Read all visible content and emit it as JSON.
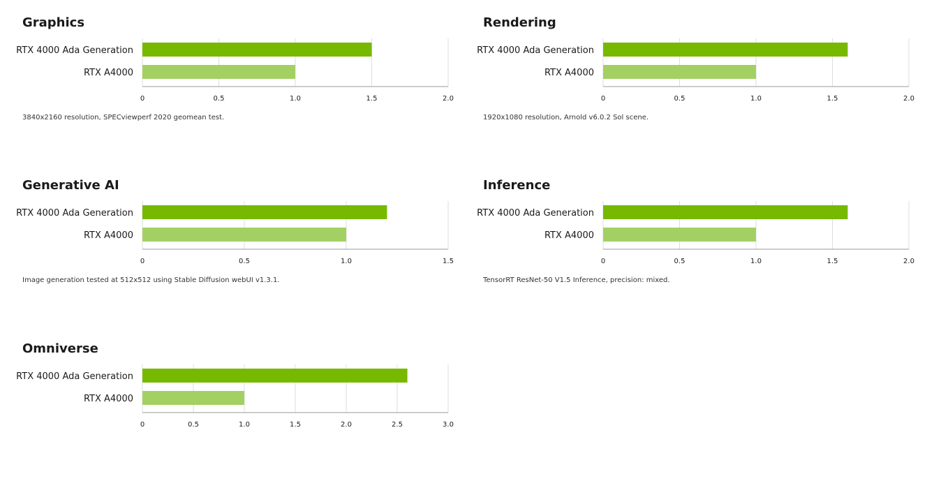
{
  "chart_data": [
    {
      "type": "bar",
      "orientation": "horizontal",
      "title": "Graphics",
      "categories": [
        "RTX 4000 Ada Generation",
        "RTX A4000"
      ],
      "values": [
        1.5,
        1.0
      ],
      "xlim": [
        0,
        2.0
      ],
      "ticks": [
        "0",
        "0.5",
        "1.0",
        "1.5",
        "2.0"
      ],
      "grid": true,
      "footnote": "3840x2160 resolution, SPECviewperf 2020 geomean test."
    },
    {
      "type": "bar",
      "orientation": "horizontal",
      "title": "Rendering",
      "categories": [
        "RTX 4000 Ada Generation",
        "RTX A4000"
      ],
      "values": [
        1.6,
        1.0
      ],
      "xlim": [
        0,
        2.0
      ],
      "ticks": [
        "0",
        "0.5",
        "1.0",
        "1.5",
        "2.0"
      ],
      "grid": true,
      "footnote": "1920x1080 resolution, Arnold v6.0.2 Sol scene."
    },
    {
      "type": "bar",
      "orientation": "horizontal",
      "title": "Generative AI",
      "categories": [
        "RTX 4000 Ada Generation",
        "RTX A4000"
      ],
      "values": [
        1.2,
        1.0
      ],
      "xlim": [
        0,
        1.5
      ],
      "ticks": [
        "0",
        "0.5",
        "1.0",
        "1.5"
      ],
      "grid": true,
      "footnote": "Image generation tested at 512x512 using Stable Diffusion webUI v1.3.1."
    },
    {
      "type": "bar",
      "orientation": "horizontal",
      "title": "Inference",
      "categories": [
        "RTX 4000 Ada Generation",
        "RTX A4000"
      ],
      "values": [
        1.6,
        1.0
      ],
      "xlim": [
        0,
        2.0
      ],
      "ticks": [
        "0",
        "0.5",
        "1.0",
        "1.5",
        "2.0"
      ],
      "grid": true,
      "footnote": "TensorRT ResNet-50 V1.5 Inference, precision: mixed."
    },
    {
      "type": "bar",
      "orientation": "horizontal",
      "title": "Omniverse",
      "categories": [
        "RTX 4000 Ada Generation",
        "RTX A4000"
      ],
      "values": [
        2.6,
        1.0
      ],
      "xlim": [
        0,
        3.0
      ],
      "ticks": [
        "0",
        "0.5",
        "1.0",
        "1.5",
        "2.0",
        "2.5",
        "3.0"
      ],
      "grid": true,
      "footnote": ""
    }
  ],
  "colors": {
    "primary_bar": "#76b900",
    "secondary_bar": "#a3d063",
    "gridline": "#dddddd",
    "axis": "#999999"
  }
}
